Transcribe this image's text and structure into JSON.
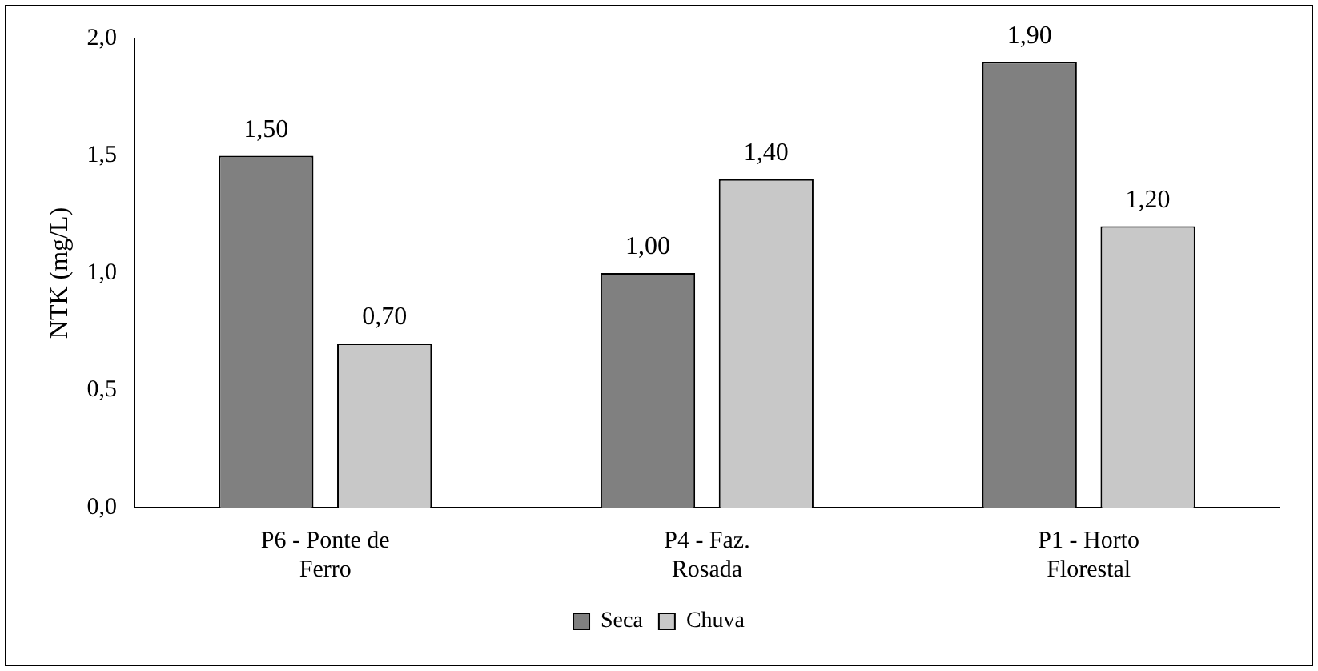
{
  "chart_data": {
    "type": "bar",
    "ylabel": "NTK (mg/L)",
    "categories": [
      "P6 - Ponte de Ferro",
      "P4 - Faz. Rosada",
      "P1 - Horto Florestal"
    ],
    "series": [
      {
        "name": "Seca",
        "color": "#808080",
        "values": [
          1.5,
          1.0,
          1.9
        ],
        "value_labels": [
          "1,50",
          "1,00",
          "1,90"
        ]
      },
      {
        "name": "Chuva",
        "color": "#c8c8c8",
        "values": [
          0.7,
          1.4,
          1.2
        ],
        "value_labels": [
          "0,70",
          "1,40",
          "1,20"
        ]
      }
    ],
    "ylim": [
      0,
      2
    ],
    "yticks": [
      {
        "value": 0,
        "label": "0,0"
      },
      {
        "value": 0.5,
        "label": "0,5"
      },
      {
        "value": 1,
        "label": "1,0"
      },
      {
        "value": 1.5,
        "label": "1,5"
      },
      {
        "value": 2,
        "label": "2,0"
      }
    ],
    "grid": false,
    "legend": "bottom"
  }
}
